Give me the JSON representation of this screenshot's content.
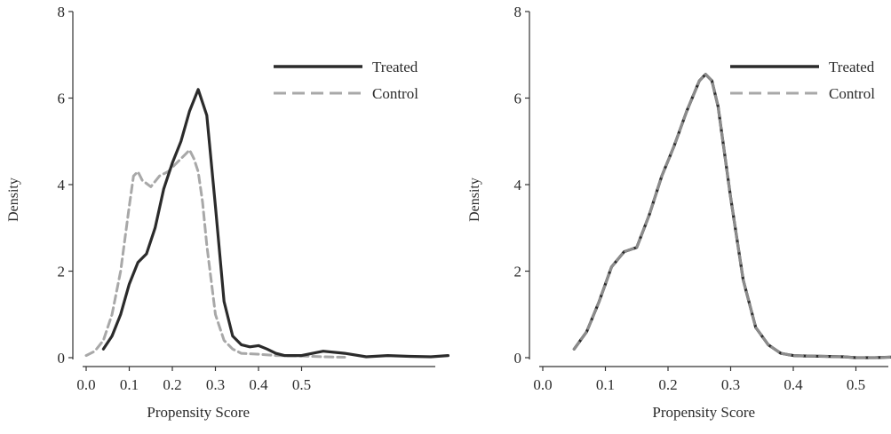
{
  "colors": {
    "treated": "#2b2b2b",
    "control": "#a8a8a8",
    "overlay_control": "#8c8c8c",
    "axis": "#333333"
  },
  "chart_data": [
    {
      "type": "line",
      "panel": "left",
      "xlabel": "Propensity Score",
      "ylabel": "Density",
      "xlim": [
        0.0,
        0.85
      ],
      "ylim": [
        0,
        8
      ],
      "xticks": [
        "0.0",
        "0.1",
        "0.2",
        "0.3",
        "0.4",
        "0.5"
      ],
      "yticks": [
        "0",
        "2",
        "4",
        "6",
        "8"
      ],
      "grid": false,
      "legend_position": "top-right",
      "series": [
        {
          "name": "Treated",
          "style": "solid",
          "x": [
            0.04,
            0.06,
            0.08,
            0.1,
            0.12,
            0.14,
            0.16,
            0.18,
            0.2,
            0.22,
            0.24,
            0.26,
            0.28,
            0.3,
            0.32,
            0.34,
            0.36,
            0.38,
            0.4,
            0.42,
            0.44,
            0.46,
            0.5,
            0.55,
            0.6,
            0.65,
            0.7,
            0.75,
            0.8,
            0.84
          ],
          "values": [
            0.2,
            0.5,
            1.0,
            1.7,
            2.2,
            2.4,
            3.0,
            3.9,
            4.5,
            5.0,
            5.7,
            6.2,
            5.6,
            3.5,
            1.3,
            0.5,
            0.3,
            0.25,
            0.28,
            0.2,
            0.1,
            0.05,
            0.05,
            0.15,
            0.1,
            0.02,
            0.05,
            0.03,
            0.02,
            0.05
          ]
        },
        {
          "name": "Control",
          "style": "dashed",
          "x": [
            0.0,
            0.02,
            0.04,
            0.06,
            0.08,
            0.1,
            0.11,
            0.12,
            0.13,
            0.15,
            0.17,
            0.19,
            0.21,
            0.23,
            0.24,
            0.25,
            0.26,
            0.27,
            0.28,
            0.3,
            0.32,
            0.34,
            0.36,
            0.4,
            0.44,
            0.5,
            0.55,
            0.6
          ],
          "values": [
            0.05,
            0.15,
            0.4,
            1.0,
            2.0,
            3.5,
            4.2,
            4.3,
            4.1,
            3.95,
            4.2,
            4.3,
            4.5,
            4.7,
            4.8,
            4.6,
            4.3,
            3.6,
            2.6,
            1.0,
            0.4,
            0.2,
            0.1,
            0.08,
            0.05,
            0.04,
            0.02,
            0.01
          ]
        }
      ]
    },
    {
      "type": "line",
      "panel": "right",
      "xlabel": "Propensity Score",
      "ylabel": "Density",
      "xlim": [
        0.0,
        0.57
      ],
      "ylim": [
        0,
        8
      ],
      "xticks": [
        "0.0",
        "0.1",
        "0.2",
        "0.3",
        "0.4",
        "0.5"
      ],
      "yticks": [
        "0",
        "2",
        "4",
        "6",
        "8"
      ],
      "grid": false,
      "legend_position": "top-right",
      "series": [
        {
          "name": "Treated",
          "style": "solid",
          "x": [
            0.05,
            0.07,
            0.09,
            0.11,
            0.13,
            0.15,
            0.17,
            0.19,
            0.21,
            0.23,
            0.25,
            0.26,
            0.27,
            0.28,
            0.3,
            0.32,
            0.34,
            0.36,
            0.38,
            0.4,
            0.42,
            0.45,
            0.48,
            0.5,
            0.53,
            0.57
          ],
          "values": [
            0.2,
            0.6,
            1.3,
            2.1,
            2.45,
            2.55,
            3.3,
            4.2,
            4.9,
            5.7,
            6.4,
            6.55,
            6.4,
            5.8,
            3.7,
            1.8,
            0.7,
            0.3,
            0.1,
            0.05,
            0.04,
            0.03,
            0.02,
            0.0,
            0.0,
            0.02
          ]
        },
        {
          "name": "Control",
          "style": "dashed",
          "x": [
            0.05,
            0.07,
            0.09,
            0.11,
            0.13,
            0.15,
            0.17,
            0.19,
            0.21,
            0.23,
            0.25,
            0.26,
            0.27,
            0.28,
            0.3,
            0.32,
            0.34,
            0.36,
            0.38,
            0.4,
            0.42,
            0.45,
            0.48,
            0.5,
            0.53,
            0.57
          ],
          "values": [
            0.2,
            0.6,
            1.3,
            2.1,
            2.45,
            2.55,
            3.3,
            4.2,
            4.9,
            5.7,
            6.4,
            6.55,
            6.4,
            5.8,
            3.7,
            1.8,
            0.7,
            0.3,
            0.1,
            0.05,
            0.04,
            0.03,
            0.02,
            0.0,
            0.0,
            0.02
          ]
        }
      ]
    }
  ]
}
